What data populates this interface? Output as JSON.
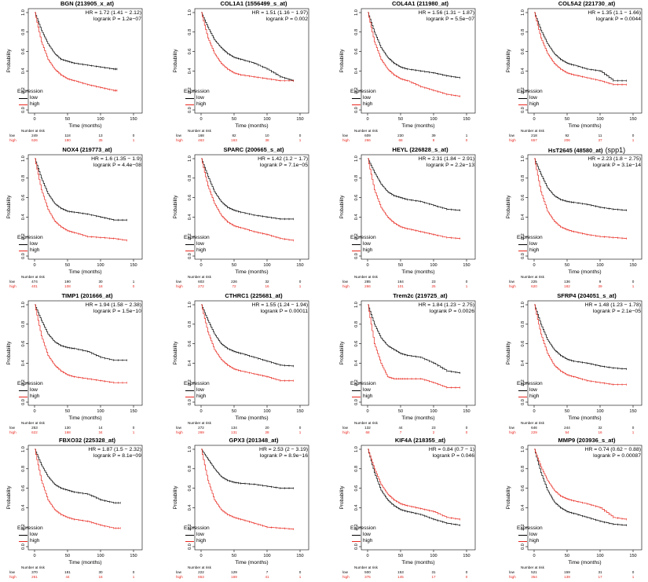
{
  "colors": {
    "low": "#000000",
    "high": "#e8271e"
  },
  "axes": {
    "ylabel": "Probability",
    "xlabel": "Time (months)",
    "xticks": [
      "0",
      "50",
      "100",
      "150"
    ],
    "yticks": [
      "0.0",
      "0.2",
      "0.4",
      "0.6",
      "0.8",
      "1.0"
    ],
    "xlim": [
      0,
      150
    ],
    "ylim": [
      0,
      1
    ]
  },
  "legend": {
    "title": "Expression",
    "low": "low",
    "high": "high"
  },
  "risk_header": "Number at risk",
  "risk_row_labels": {
    "low": "low",
    "high": "high"
  },
  "chart_data": [
    {
      "type": "line",
      "title": "BGN (213905_x_at)",
      "extra": "",
      "hr": "HR = 1.72 (1.41 − 2.12)",
      "p": "logrank P = 1.2e−07",
      "x": [
        0,
        10,
        20,
        30,
        40,
        50,
        60,
        80,
        100,
        120,
        125
      ],
      "series": [
        {
          "name": "low",
          "values": [
            1,
            0.82,
            0.68,
            0.58,
            0.52,
            0.5,
            0.48,
            0.46,
            0.44,
            0.42,
            0.42
          ]
        },
        {
          "name": "high",
          "values": [
            1,
            0.7,
            0.52,
            0.42,
            0.36,
            0.32,
            0.3,
            0.26,
            0.23,
            0.2,
            0.2
          ]
        }
      ],
      "risk_low": [
        "249",
        "118",
        "13",
        "0"
      ],
      "risk_high": [
        "626",
        "180",
        "35",
        "1"
      ]
    },
    {
      "type": "line",
      "title": "COL1A1 (1556499_s_at)",
      "extra": "",
      "hr": "HR = 1.51 (1.16 − 1.97)",
      "p": "logrank P = 0.002",
      "x": [
        0,
        10,
        20,
        30,
        40,
        50,
        60,
        80,
        100,
        120,
        140
      ],
      "series": [
        {
          "name": "low",
          "values": [
            1,
            0.85,
            0.72,
            0.64,
            0.58,
            0.54,
            0.52,
            0.48,
            0.42,
            0.34,
            0.3
          ]
        },
        {
          "name": "high",
          "values": [
            1,
            0.74,
            0.58,
            0.48,
            0.42,
            0.38,
            0.36,
            0.34,
            0.32,
            0.3,
            0.3
          ]
        }
      ],
      "risk_low": [
        "168",
        "82",
        "10",
        "0"
      ],
      "risk_high": [
        "463",
        "163",
        "38",
        "1"
      ]
    },
    {
      "type": "line",
      "title": "COL4A1 (211980_at)",
      "extra": "",
      "hr": "HR = 1.56 (1.31 − 1.87)",
      "p": "logrank P = 5.5e−07",
      "x": [
        0,
        10,
        20,
        30,
        40,
        50,
        60,
        80,
        100,
        120,
        140
      ],
      "series": [
        {
          "name": "low",
          "values": [
            1,
            0.8,
            0.64,
            0.54,
            0.48,
            0.44,
            0.42,
            0.4,
            0.38,
            0.35,
            0.33
          ]
        },
        {
          "name": "high",
          "values": [
            1,
            0.7,
            0.52,
            0.42,
            0.36,
            0.32,
            0.3,
            0.24,
            0.2,
            0.16,
            0.14
          ]
        }
      ],
      "risk_low": [
        "609",
        "230",
        "39",
        "1"
      ],
      "risk_high": [
        "266",
        "68",
        "8",
        "0"
      ]
    },
    {
      "type": "line",
      "title": "COL5A2 (221730_at)",
      "extra": "",
      "hr": "HR = 1.35 (1.1 − 1.66)",
      "p": "logrank P = 0.0044",
      "x": [
        0,
        10,
        20,
        30,
        40,
        50,
        60,
        80,
        100,
        120,
        140
      ],
      "series": [
        {
          "name": "low",
          "values": [
            1,
            0.82,
            0.68,
            0.58,
            0.52,
            0.48,
            0.46,
            0.42,
            0.4,
            0.3,
            0.3
          ]
        },
        {
          "name": "high",
          "values": [
            1,
            0.74,
            0.58,
            0.48,
            0.42,
            0.38,
            0.36,
            0.33,
            0.3,
            0.26,
            0.26
          ]
        }
      ],
      "risk_low": [
        "218",
        "92",
        "11",
        "0"
      ],
      "risk_high": [
        "657",
        "206",
        "37",
        "1"
      ]
    },
    {
      "type": "line",
      "title": "NOX4 (219773_at)",
      "extra": "",
      "hr": "HR = 1.6 (1.35 − 1.9)",
      "p": "logrank P = 4.4e−08",
      "x": [
        0,
        10,
        20,
        30,
        40,
        50,
        60,
        80,
        100,
        120,
        140
      ],
      "series": [
        {
          "name": "low",
          "values": [
            1,
            0.8,
            0.64,
            0.54,
            0.49,
            0.46,
            0.45,
            0.43,
            0.4,
            0.37,
            0.37
          ]
        },
        {
          "name": "high",
          "values": [
            1,
            0.68,
            0.48,
            0.36,
            0.3,
            0.26,
            0.24,
            0.2,
            0.19,
            0.18,
            0.16
          ]
        }
      ],
      "risk_low": [
        "474",
        "190",
        "30",
        "1"
      ],
      "risk_high": [
        "401",
        "108",
        "18",
        "0"
      ]
    },
    {
      "type": "line",
      "title": "SPARC (200665_s_at)",
      "extra": "",
      "hr": "HR = 1.42 (1.2 − 1.7)",
      "p": "logrank P = 7.1e−05",
      "x": [
        0,
        10,
        20,
        30,
        40,
        50,
        60,
        80,
        100,
        120,
        140
      ],
      "series": [
        {
          "name": "low",
          "values": [
            1,
            0.82,
            0.66,
            0.56,
            0.5,
            0.47,
            0.45,
            0.42,
            0.4,
            0.38,
            0.38
          ]
        },
        {
          "name": "high",
          "values": [
            1,
            0.72,
            0.54,
            0.42,
            0.35,
            0.31,
            0.29,
            0.25,
            0.22,
            0.18,
            0.16
          ]
        }
      ],
      "risk_low": [
        "603",
        "226",
        "32",
        "0"
      ],
      "risk_high": [
        "272",
        "72",
        "16",
        "1"
      ]
    },
    {
      "type": "line",
      "title": "HEYL (226828_s_at)",
      "extra": "",
      "hr": "HR = 2.31 (1.84 − 2.91)",
      "p": "logrank P = 2.2e−13",
      "x": [
        0,
        10,
        20,
        30,
        40,
        50,
        60,
        80,
        100,
        120,
        140
      ],
      "series": [
        {
          "name": "low",
          "values": [
            1,
            0.86,
            0.74,
            0.66,
            0.62,
            0.6,
            0.58,
            0.56,
            0.52,
            0.48,
            0.47
          ]
        },
        {
          "name": "high",
          "values": [
            1,
            0.68,
            0.5,
            0.4,
            0.34,
            0.3,
            0.28,
            0.25,
            0.22,
            0.19,
            0.18
          ]
        }
      ],
      "risk_low": [
        "285",
        "164",
        "23",
        "0"
      ],
      "risk_high": [
        "266",
        "101",
        "25",
        "1"
      ]
    },
    {
      "type": "line",
      "title": "HsT2645 (48580_at)",
      "extra": "(spp1)",
      "hr": "HR = 2.23 (1.8 − 2.75)",
      "p": "logrank P = 3.1e−14",
      "x": [
        0,
        10,
        20,
        30,
        40,
        50,
        60,
        80,
        100,
        120,
        140
      ],
      "series": [
        {
          "name": "low",
          "values": [
            1,
            0.84,
            0.7,
            0.62,
            0.58,
            0.56,
            0.55,
            0.53,
            0.5,
            0.48,
            0.47
          ]
        },
        {
          "name": "high",
          "values": [
            1,
            0.66,
            0.46,
            0.36,
            0.3,
            0.27,
            0.25,
            0.22,
            0.2,
            0.19,
            0.18
          ]
        }
      ],
      "risk_low": [
        "225",
        "136",
        "9",
        "0"
      ],
      "risk_high": [
        "620",
        "182",
        "39",
        "1"
      ]
    },
    {
      "type": "line",
      "title": "TIMP1 (201666_at)",
      "extra": "",
      "hr": "HR = 1.94 (1.58 − 2.38)",
      "p": "logrank P = 1.5e−10",
      "x": [
        0,
        10,
        20,
        30,
        40,
        50,
        60,
        80,
        100,
        120,
        140
      ],
      "series": [
        {
          "name": "low",
          "values": [
            1,
            0.84,
            0.7,
            0.62,
            0.58,
            0.56,
            0.55,
            0.52,
            0.46,
            0.43,
            0.43
          ]
        },
        {
          "name": "high",
          "values": [
            1,
            0.68,
            0.48,
            0.38,
            0.32,
            0.28,
            0.26,
            0.24,
            0.22,
            0.2,
            0.2
          ]
        }
      ],
      "risk_low": [
        "253",
        "130",
        "14",
        "0"
      ],
      "risk_high": [
        "622",
        "168",
        "34",
        "1"
      ]
    },
    {
      "type": "line",
      "title": "CTHRC1 (225681_at)",
      "extra": "",
      "hr": "HR = 1.55 (1.24 − 1.94)",
      "p": "logrank P = 0.00011",
      "x": [
        0,
        10,
        20,
        30,
        40,
        50,
        60,
        80,
        100,
        120,
        140
      ],
      "series": [
        {
          "name": "low",
          "values": [
            1,
            0.84,
            0.7,
            0.6,
            0.55,
            0.52,
            0.5,
            0.46,
            0.42,
            0.38,
            0.37
          ]
        },
        {
          "name": "high",
          "values": [
            1,
            0.72,
            0.54,
            0.44,
            0.38,
            0.34,
            0.32,
            0.29,
            0.26,
            0.22,
            0.22
          ]
        }
      ],
      "risk_low": [
        "272",
        "134",
        "20",
        "0"
      ],
      "risk_high": [
        "269",
        "131",
        "28",
        "1"
      ]
    },
    {
      "type": "line",
      "title": "Trem2c (219725_at)",
      "extra": "",
      "hr": "HR = 1.84 (1.23 − 2.75)",
      "p": "logrank P = 0.0026",
      "x": [
        0,
        10,
        20,
        30,
        40,
        50,
        60,
        80,
        100,
        120,
        140
      ],
      "series": [
        {
          "name": "low",
          "values": [
            1,
            0.8,
            0.66,
            0.58,
            0.54,
            0.5,
            0.48,
            0.46,
            0.4,
            0.32,
            0.3
          ]
        },
        {
          "name": "high",
          "values": [
            1,
            0.6,
            0.4,
            0.26,
            0.24,
            0.24,
            0.24,
            0.24,
            0.2,
            0.15,
            0.15
          ]
        }
      ],
      "risk_low": [
        "132",
        "44",
        "23",
        "0"
      ],
      "risk_high": [
        "68",
        "7",
        "2",
        "0"
      ]
    },
    {
      "type": "line",
      "title": "SFRP4 (204051_s_at)",
      "extra": "",
      "hr": "HR = 1.48 (1.23 − 1.78)",
      "p": "logrank P = 2.1e−05",
      "x": [
        0,
        10,
        20,
        30,
        40,
        50,
        60,
        80,
        100,
        120,
        140
      ],
      "series": [
        {
          "name": "low",
          "values": [
            1,
            0.8,
            0.64,
            0.54,
            0.48,
            0.44,
            0.42,
            0.4,
            0.37,
            0.35,
            0.34
          ]
        },
        {
          "name": "high",
          "values": [
            1,
            0.7,
            0.5,
            0.38,
            0.32,
            0.28,
            0.26,
            0.22,
            0.2,
            0.18,
            0.18
          ]
        }
      ],
      "risk_low": [
        "646",
        "244",
        "32",
        "0"
      ],
      "risk_high": [
        "229",
        "54",
        "16",
        "1"
      ]
    },
    {
      "type": "line",
      "title": "FBXO32 (225328_at)",
      "extra": "",
      "hr": "HR = 1.87 (1.5 − 2.32)",
      "p": "logrank P = 8.1e−09",
      "x": [
        0,
        10,
        20,
        30,
        40,
        50,
        60,
        80,
        100,
        120,
        130
      ],
      "series": [
        {
          "name": "low",
          "values": [
            1,
            0.84,
            0.72,
            0.64,
            0.6,
            0.58,
            0.56,
            0.54,
            0.48,
            0.45,
            0.45
          ]
        },
        {
          "name": "high",
          "values": [
            1,
            0.68,
            0.48,
            0.38,
            0.33,
            0.3,
            0.28,
            0.26,
            0.22,
            0.19,
            0.19
          ]
        }
      ],
      "risk_low": [
        "370",
        "181",
        "30",
        "0"
      ],
      "risk_high": [
        "261",
        "44",
        "16",
        "1"
      ]
    },
    {
      "type": "line",
      "title": "GPX3 (201348_at)",
      "extra": "",
      "hr": "HR = 2.53 (2 − 3.19)",
      "p": "logrank P = 8.9e−16",
      "x": [
        0,
        10,
        20,
        30,
        40,
        50,
        60,
        80,
        100,
        120,
        140
      ],
      "series": [
        {
          "name": "low",
          "values": [
            1,
            0.9,
            0.8,
            0.72,
            0.68,
            0.66,
            0.65,
            0.64,
            0.62,
            0.6,
            0.6
          ]
        },
        {
          "name": "high",
          "values": [
            1,
            0.68,
            0.48,
            0.38,
            0.33,
            0.3,
            0.28,
            0.24,
            0.2,
            0.19,
            0.18
          ]
        }
      ],
      "risk_low": [
        "222",
        "129",
        "7",
        "0"
      ],
      "risk_high": [
        "653",
        "169",
        "41",
        "1"
      ]
    },
    {
      "type": "line",
      "title": "KIF4A (218355_at)",
      "extra": "",
      "hr": "HR = 0.84 (0.7 − 1)",
      "p": "logrank P = 0.046",
      "x": [
        0,
        10,
        20,
        30,
        40,
        50,
        60,
        80,
        100,
        120,
        140
      ],
      "series": [
        {
          "name": "low",
          "values": [
            1,
            0.76,
            0.58,
            0.48,
            0.42,
            0.38,
            0.36,
            0.33,
            0.28,
            0.24,
            0.22
          ]
        },
        {
          "name": "high",
          "values": [
            1,
            0.8,
            0.64,
            0.54,
            0.48,
            0.44,
            0.42,
            0.39,
            0.36,
            0.3,
            0.28
          ]
        }
      ],
      "risk_low": [
        "500",
        "153",
        "31",
        "0"
      ],
      "risk_high": [
        "375",
        "145",
        "17",
        "0"
      ]
    },
    {
      "type": "line",
      "title": "MMP9 (203936_s_at)",
      "extra": "",
      "hr": "HR = 0.74 (0.62 − 0.88)",
      "p": "logrank P = 0.00087",
      "x": [
        0,
        10,
        20,
        30,
        40,
        50,
        60,
        80,
        100,
        120,
        140
      ],
      "series": [
        {
          "name": "low",
          "values": [
            1,
            0.76,
            0.58,
            0.46,
            0.4,
            0.36,
            0.34,
            0.3,
            0.26,
            0.23,
            0.22
          ]
        },
        {
          "name": "high",
          "values": [
            1,
            0.82,
            0.68,
            0.58,
            0.52,
            0.49,
            0.47,
            0.44,
            0.4,
            0.3,
            0.28
          ]
        }
      ],
      "risk_low": [
        "521",
        "159",
        "31",
        "0"
      ],
      "risk_high": [
        "354",
        "139",
        "17",
        "1"
      ]
    }
  ]
}
